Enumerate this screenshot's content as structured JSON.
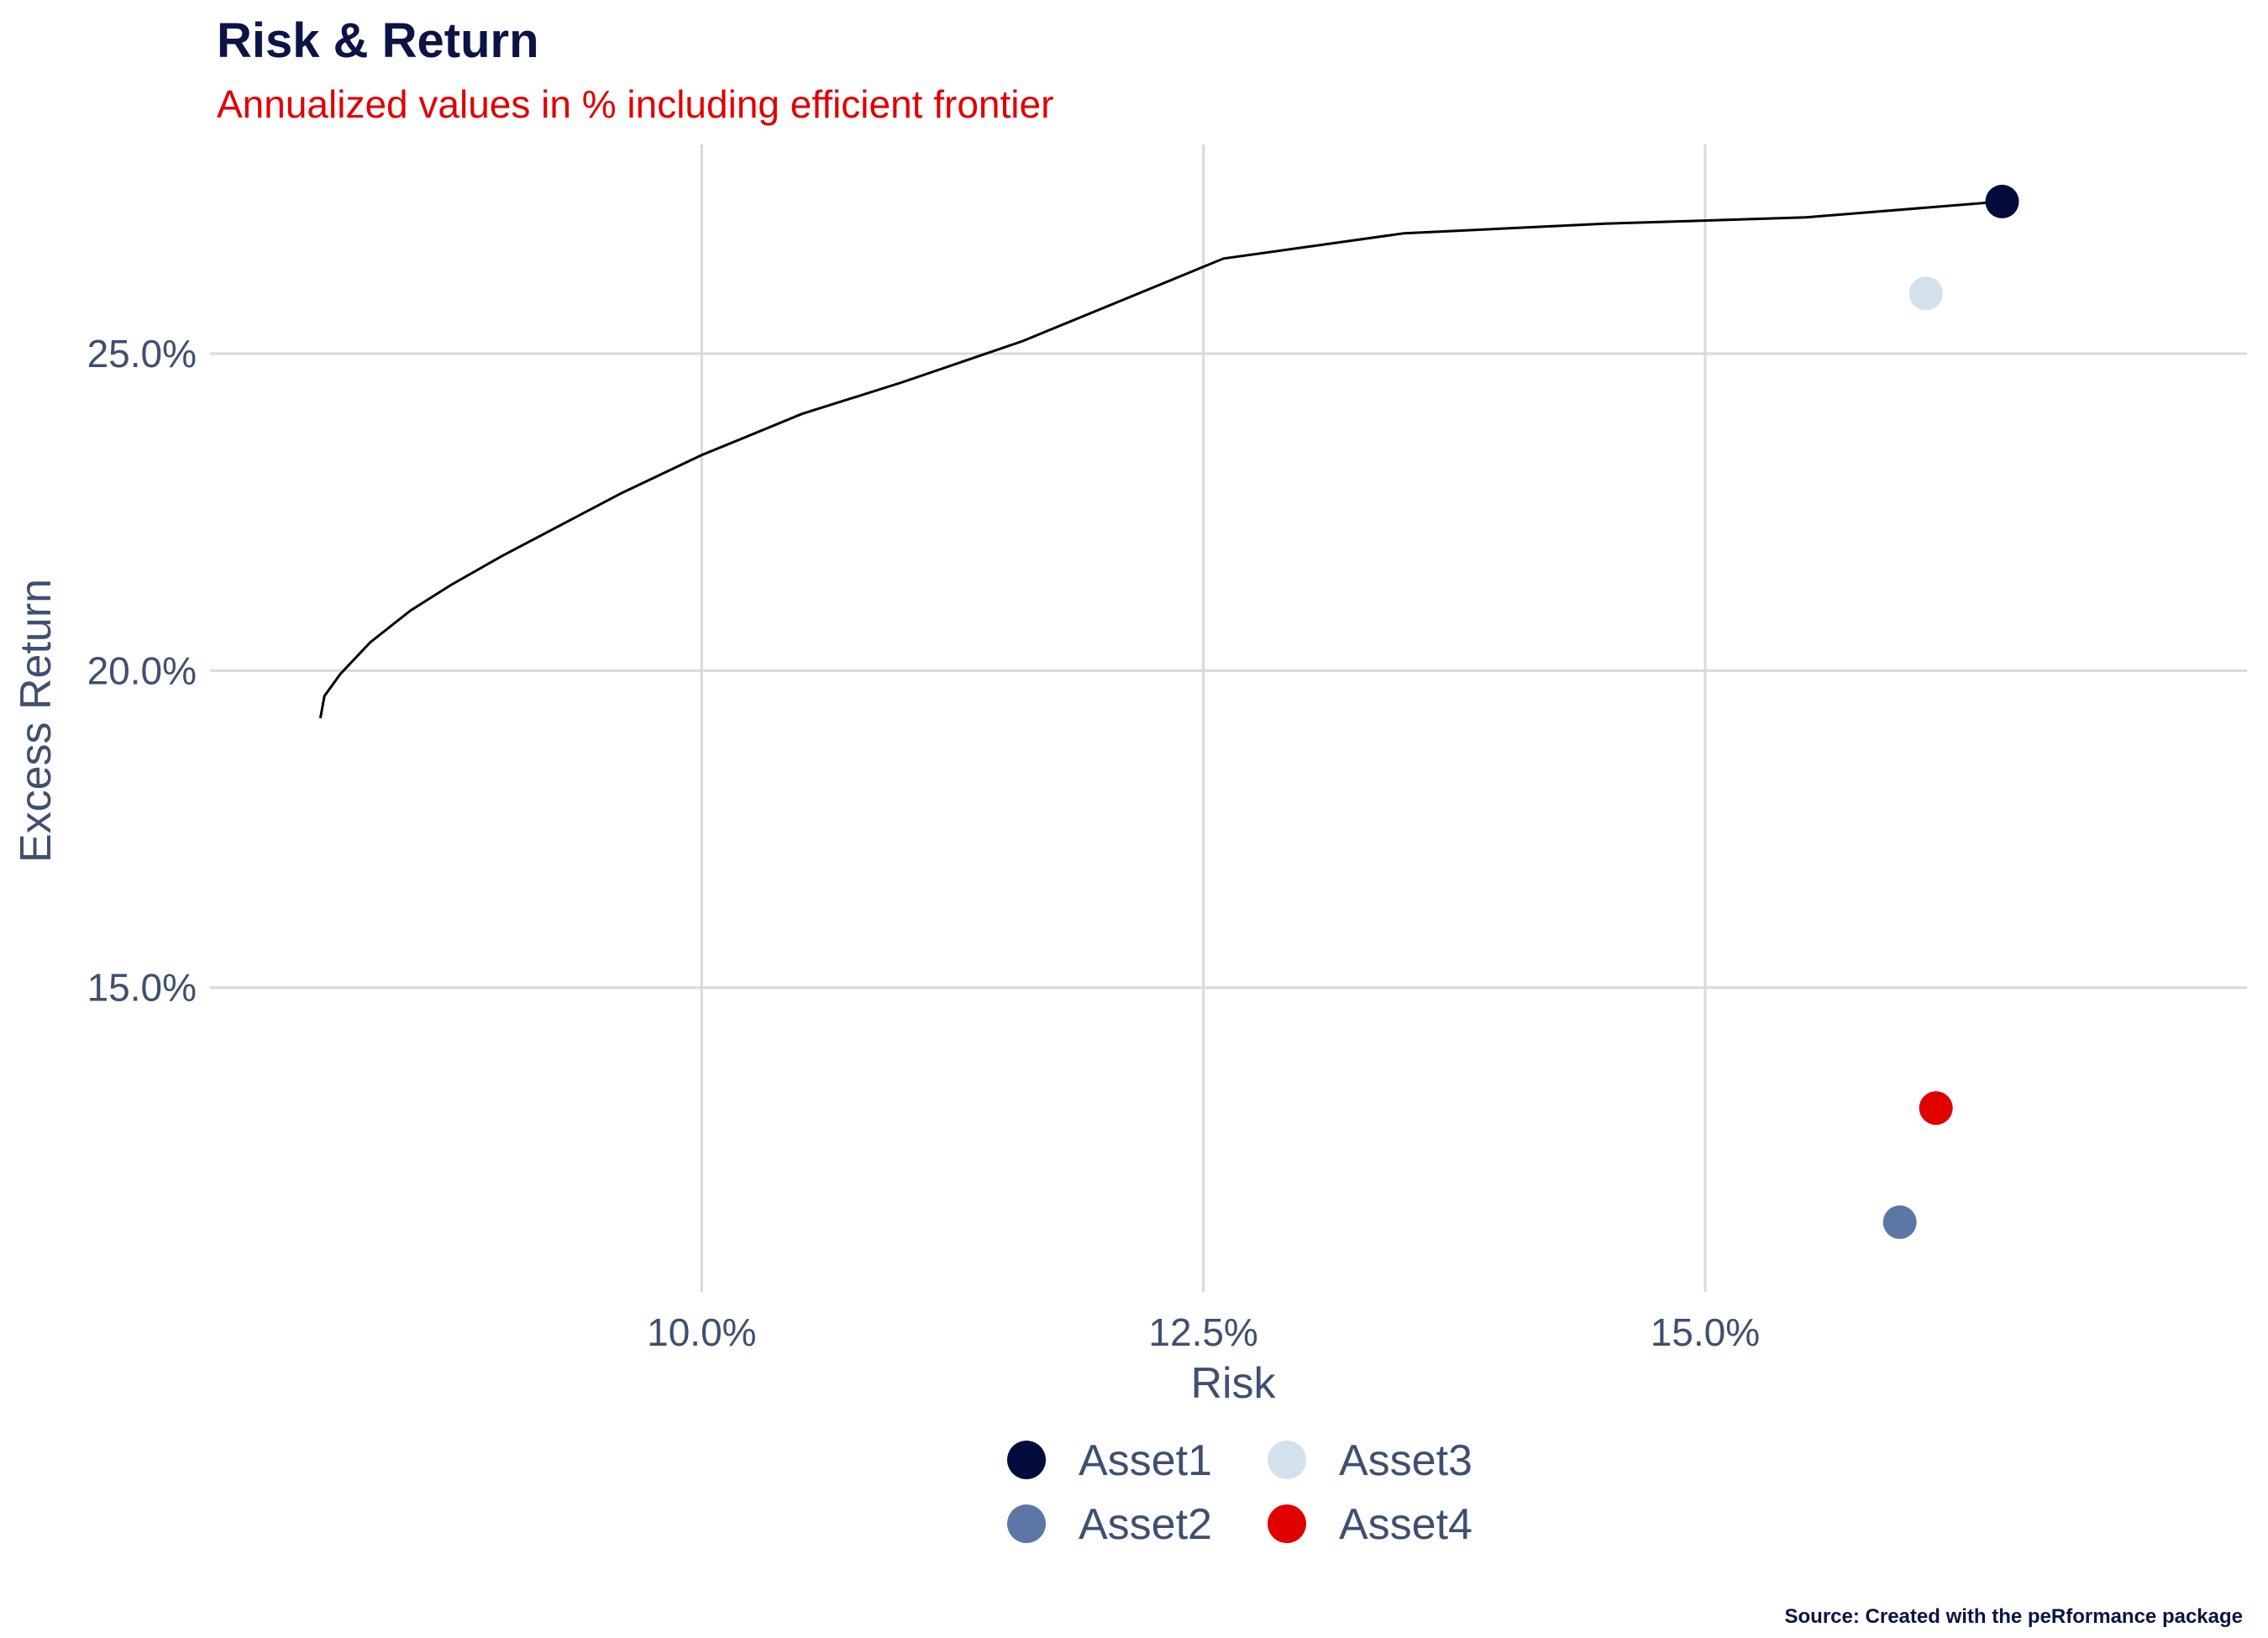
{
  "chart_data": {
    "type": "scatter",
    "title": "Risk & Return",
    "subtitle": "Annualized values in % including efficient frontier",
    "xlabel": "Risk",
    "ylabel": "Excess Return",
    "caption": "Source: Created with the peRformance package",
    "xlim": [
      7.55,
      17.7
    ],
    "ylim": [
      10.2,
      28.3
    ],
    "x_ticks": [
      {
        "value": 10.0,
        "label": "10.0%"
      },
      {
        "value": 12.5,
        "label": "12.5%"
      },
      {
        "value": 15.0,
        "label": "15.0%"
      }
    ],
    "y_ticks": [
      {
        "value": 15.0,
        "label": "15.0%"
      },
      {
        "value": 20.0,
        "label": "20.0%"
      },
      {
        "value": 25.0,
        "label": "25.0%"
      }
    ],
    "grid": true,
    "legend_position": "bottom",
    "series": [
      {
        "name": "Asset1",
        "color": "#040c3c",
        "x": 16.48,
        "y": 27.4
      },
      {
        "name": "Asset2",
        "color": "#5c77a5",
        "x": 15.97,
        "y": 11.3
      },
      {
        "name": "Asset3",
        "color": "#d2e1eb",
        "x": 16.1,
        "y": 25.95
      },
      {
        "name": "Asset4",
        "color": "#e00000",
        "x": 16.15,
        "y": 13.1
      }
    ],
    "frontier": {
      "color": "#000000",
      "x": [
        8.1,
        8.12,
        8.2,
        8.35,
        8.55,
        8.75,
        9.0,
        9.3,
        9.6,
        10.0,
        10.5,
        11.0,
        11.6,
        12.6,
        13.5,
        14.5,
        15.5,
        16.48
      ],
      "y": [
        19.25,
        19.6,
        19.95,
        20.45,
        20.95,
        21.35,
        21.8,
        22.3,
        22.8,
        23.4,
        24.05,
        24.55,
        25.2,
        26.5,
        26.9,
        27.05,
        27.15,
        27.4
      ]
    }
  }
}
